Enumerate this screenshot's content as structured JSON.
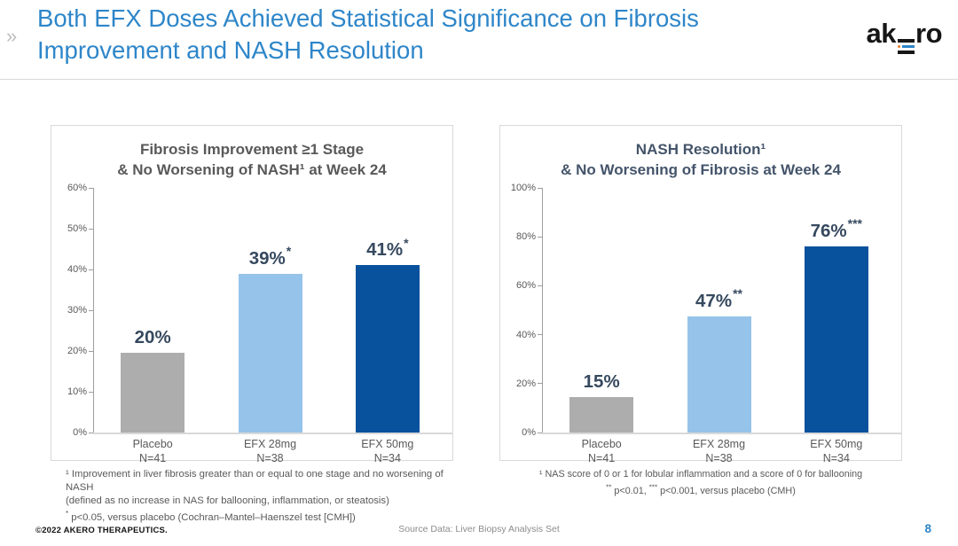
{
  "header": {
    "title_line1": "Both EFX Doses Achieved Statistical Significance on Fibrosis",
    "title_line2": "Improvement and NASH Resolution",
    "title_color": "#2E86C9",
    "nav_chevron": "»",
    "logo": {
      "left": "ak",
      "right": "ro",
      "dot_color": "#F07C22",
      "bar_color": "#2E86C9"
    }
  },
  "chart_data": [
    {
      "type": "bar",
      "title": "Fibrosis Improvement ≥1 Stage & No Worsening of NASH¹ at Week 24",
      "title_line1": "Fibrosis Improvement ≥1 Stage",
      "title_line2": "& No Worsening of NASH¹ at Week 24",
      "title_color": "#595959",
      "categories": [
        [
          "Placebo",
          "N=41"
        ],
        [
          "EFX 28mg",
          "N=38"
        ],
        [
          "EFX 50mg",
          "N=34"
        ]
      ],
      "values": [
        20,
        39,
        41
      ],
      "bar_heights_pct": [
        19.5,
        39,
        41
      ],
      "data_labels": [
        "20%",
        "39%",
        "41%"
      ],
      "significance": [
        "",
        "*",
        "*"
      ],
      "bar_colors": [
        "#ADADAD",
        "#95C3E9",
        "#07519D"
      ],
      "ylim": [
        0,
        60
      ],
      "ytick_step": 10,
      "ytick_labels": [
        "0%",
        "10%",
        "20%",
        "30%",
        "40%",
        "50%",
        "60%"
      ],
      "grid": false,
      "legend": "none",
      "xlabel": "",
      "ylabel": "",
      "footnote_lines": [
        "¹ Improvement in liver fibrosis greater than or equal to one stage and no worsening of NASH",
        "(defined as no increase in NAS for ballooning, inflammation, or steatosis)",
        "* p<0.05, versus placebo (Cochran–Mantel–Haenszel test [CMH])"
      ]
    },
    {
      "type": "bar",
      "title": "NASH Resolution¹ & No Worsening of Fibrosis at Week 24",
      "title_line1": "NASH Resolution¹",
      "title_line2": "& No Worsening of Fibrosis at Week 24",
      "title_color": "#44546A",
      "categories": [
        [
          "Placebo",
          "N=41"
        ],
        [
          "EFX 28mg",
          "N=38"
        ],
        [
          "EFX 50mg",
          "N=34"
        ]
      ],
      "values": [
        15,
        47,
        76
      ],
      "bar_heights_pct": [
        14.5,
        47.5,
        76
      ],
      "data_labels": [
        "15%",
        "47%",
        "76%"
      ],
      "significance": [
        "",
        "**",
        "***"
      ],
      "bar_colors": [
        "#ADADAD",
        "#95C3E9",
        "#07519D"
      ],
      "ylim": [
        0,
        100
      ],
      "ytick_step": 20,
      "ytick_labels": [
        "0%",
        "20%",
        "40%",
        "60%",
        "80%",
        "100%"
      ],
      "grid": false,
      "legend": "none",
      "xlabel": "",
      "ylabel": "",
      "footnote_lines": [
        "¹ NAS score of 0 or 1 for lobular inflammation and a score of 0 for ballooning",
        "** p<0.01, *** p<0.001, versus placebo (CMH)"
      ]
    }
  ],
  "footer": {
    "copyright": "©2022 AKERO THERAPEUTICS.",
    "source": "Source Data: Liver Biopsy Analysis Set",
    "page_number": "8"
  }
}
